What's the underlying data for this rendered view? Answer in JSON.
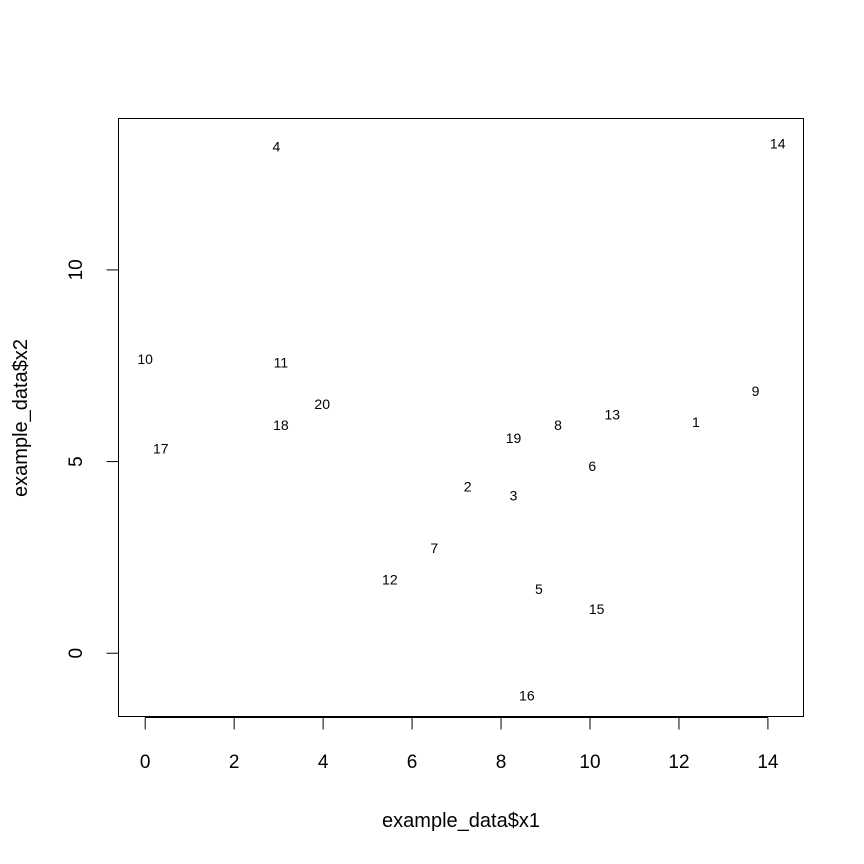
{
  "chart_data": {
    "type": "scatter",
    "title": "",
    "xlabel": "example_data$x1",
    "ylabel": "example_data$x2",
    "xlim": [
      -0.6,
      14.8
    ],
    "ylim": [
      -1.65,
      13.95
    ],
    "xticks": [
      "0",
      "2",
      "4",
      "6",
      "8",
      "10",
      "12",
      "14"
    ],
    "yticks": [
      "0",
      "5",
      "10"
    ],
    "grid": false,
    "legend": "none",
    "marker": "text labels (point index)",
    "points": [
      {
        "label": "1",
        "x": 12.38,
        "y": 6.03
      },
      {
        "label": "2",
        "x": 7.25,
        "y": 4.35
      },
      {
        "label": "3",
        "x": 8.28,
        "y": 4.12
      },
      {
        "label": "4",
        "x": 2.95,
        "y": 13.22
      },
      {
        "label": "5",
        "x": 8.85,
        "y": 1.68
      },
      {
        "label": "6",
        "x": 10.05,
        "y": 4.88
      },
      {
        "label": "7",
        "x": 6.5,
        "y": 2.74
      },
      {
        "label": "8",
        "x": 9.28,
        "y": 5.95
      },
      {
        "label": "9",
        "x": 13.72,
        "y": 6.84
      },
      {
        "label": "10",
        "x": 0.0,
        "y": 7.67
      },
      {
        "label": "11",
        "x": 3.05,
        "y": 7.59
      },
      {
        "label": "12",
        "x": 5.5,
        "y": 1.92
      },
      {
        "label": "13",
        "x": 10.5,
        "y": 6.23
      },
      {
        "label": "14",
        "x": 14.22,
        "y": 13.3
      },
      {
        "label": "15",
        "x": 10.15,
        "y": 1.15
      },
      {
        "label": "16",
        "x": 8.58,
        "y": -1.1
      },
      {
        "label": "17",
        "x": 0.35,
        "y": 5.34
      },
      {
        "label": "18",
        "x": 3.05,
        "y": 5.95
      },
      {
        "label": "19",
        "x": 8.28,
        "y": 5.61
      },
      {
        "label": "20",
        "x": 3.98,
        "y": 6.5
      }
    ]
  }
}
